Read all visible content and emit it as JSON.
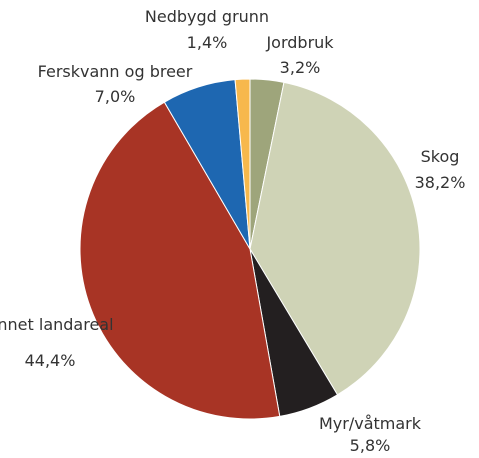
{
  "chart_data": {
    "type": "pie",
    "categories": [
      "Jordbruk",
      "Skog",
      "Myr/våtmark",
      "Annet landareal",
      "Ferskvann og breer",
      "Nedbygd grunn"
    ],
    "values": [
      3.2,
      38.2,
      5.8,
      44.4,
      7.0,
      1.4
    ],
    "value_labels": [
      "3,2%",
      "38,2%",
      "5,8%",
      "44,4%",
      "7,0%",
      "1,4%"
    ],
    "colors": [
      "#9ea57b",
      "#cfd3b6",
      "#231f20",
      "#a83425",
      "#1e67b1",
      "#f7b84c"
    ]
  }
}
